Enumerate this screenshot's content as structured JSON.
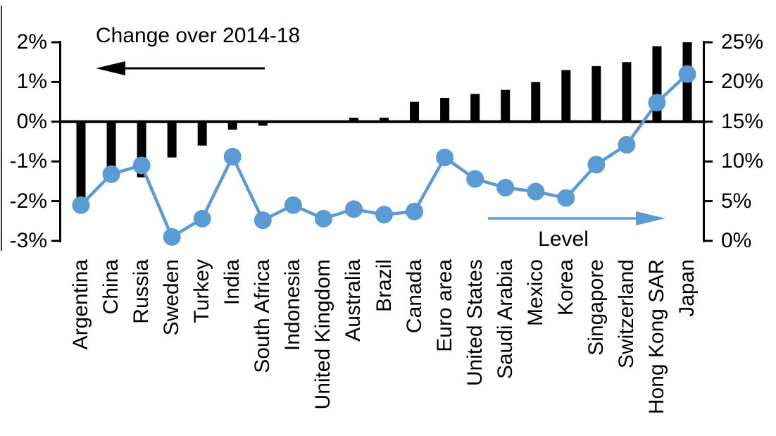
{
  "chart_data": {
    "type": "combo-bar-line",
    "title": "",
    "categories": [
      "Argentina",
      "China",
      "Russia",
      "Sweden",
      "Turkey",
      "India",
      "South Africa",
      "Indonesia",
      "United Kingdom",
      "Australia",
      "Brazil",
      "Canada",
      "Euro area",
      "United States",
      "Saudi Arabia",
      "Mexico",
      "Korea",
      "Singapore",
      "Switzerland",
      "Hong Kong SAR",
      "Japan"
    ],
    "series": [
      {
        "name": "Change over 2014-18",
        "type": "bar",
        "axis": "left",
        "color": "#000000",
        "values": [
          -2.0,
          -1.5,
          -1.4,
          -0.9,
          -0.6,
          -0.2,
          -0.1,
          0.0,
          0.0,
          0.1,
          0.1,
          0.5,
          0.6,
          0.7,
          0.8,
          1.0,
          1.3,
          1.4,
          1.5,
          1.9,
          2.0
        ]
      },
      {
        "name": "Level",
        "type": "line",
        "axis": "right",
        "color": "#5B9BD5",
        "values": [
          4.5,
          8.4,
          9.5,
          0.5,
          2.8,
          10.6,
          2.6,
          4.5,
          2.8,
          4.0,
          3.3,
          3.7,
          10.5,
          7.8,
          6.7,
          6.2,
          5.4,
          9.6,
          12.1,
          17.4,
          21.0
        ]
      }
    ],
    "left_axis": {
      "tick_labels": [
        "2%",
        "1%",
        "0%",
        "-1%",
        "-2%",
        "-3%"
      ],
      "max": 2,
      "min": -3
    },
    "right_axis": {
      "tick_labels": [
        "25%",
        "20%",
        "15%",
        "10%",
        "5%",
        "0%"
      ],
      "max": 25,
      "min": 0
    },
    "annotations": {
      "bar_series_label": "Change over 2014-18",
      "line_series_label": "Level"
    },
    "layout_hints": {
      "grid": false,
      "zero_line_shared": "left 0% = right 15%",
      "legend": "arrow annotations"
    }
  }
}
